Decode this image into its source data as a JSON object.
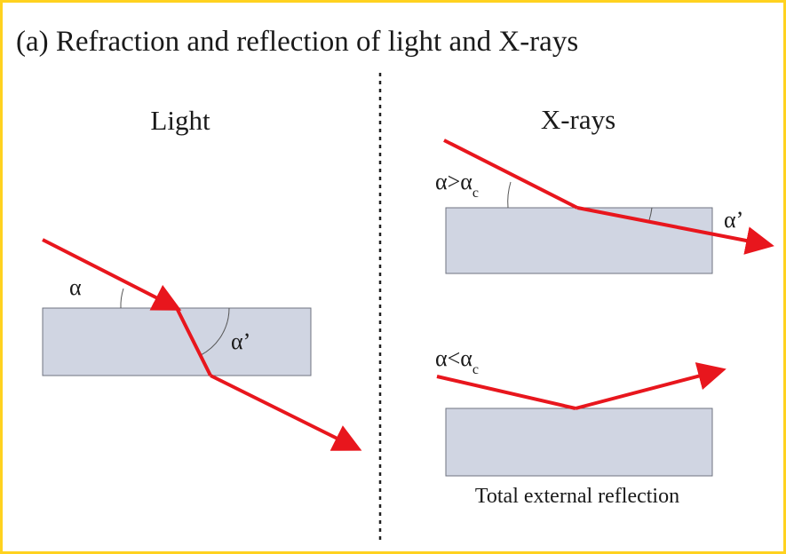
{
  "title": "(a) Refraction and reflection  of light and X-rays",
  "panels": {
    "light": {
      "heading": "Light",
      "incident_angle": "α",
      "refracted_angle": "α’"
    },
    "xrays": {
      "heading": "X-rays",
      "refraction": {
        "incident_angle": "α>α",
        "incident_sub": "c",
        "refracted_angle": "α’"
      },
      "reflection": {
        "incident_angle": "α<α",
        "incident_sub": "c",
        "caption": "Total external reflection"
      }
    }
  },
  "colors": {
    "frame": "#ffd21f",
    "ray": "#e8161d",
    "slab_fill": "#d0d5e2",
    "slab_stroke": "#6f7380",
    "divider": "#222222"
  }
}
